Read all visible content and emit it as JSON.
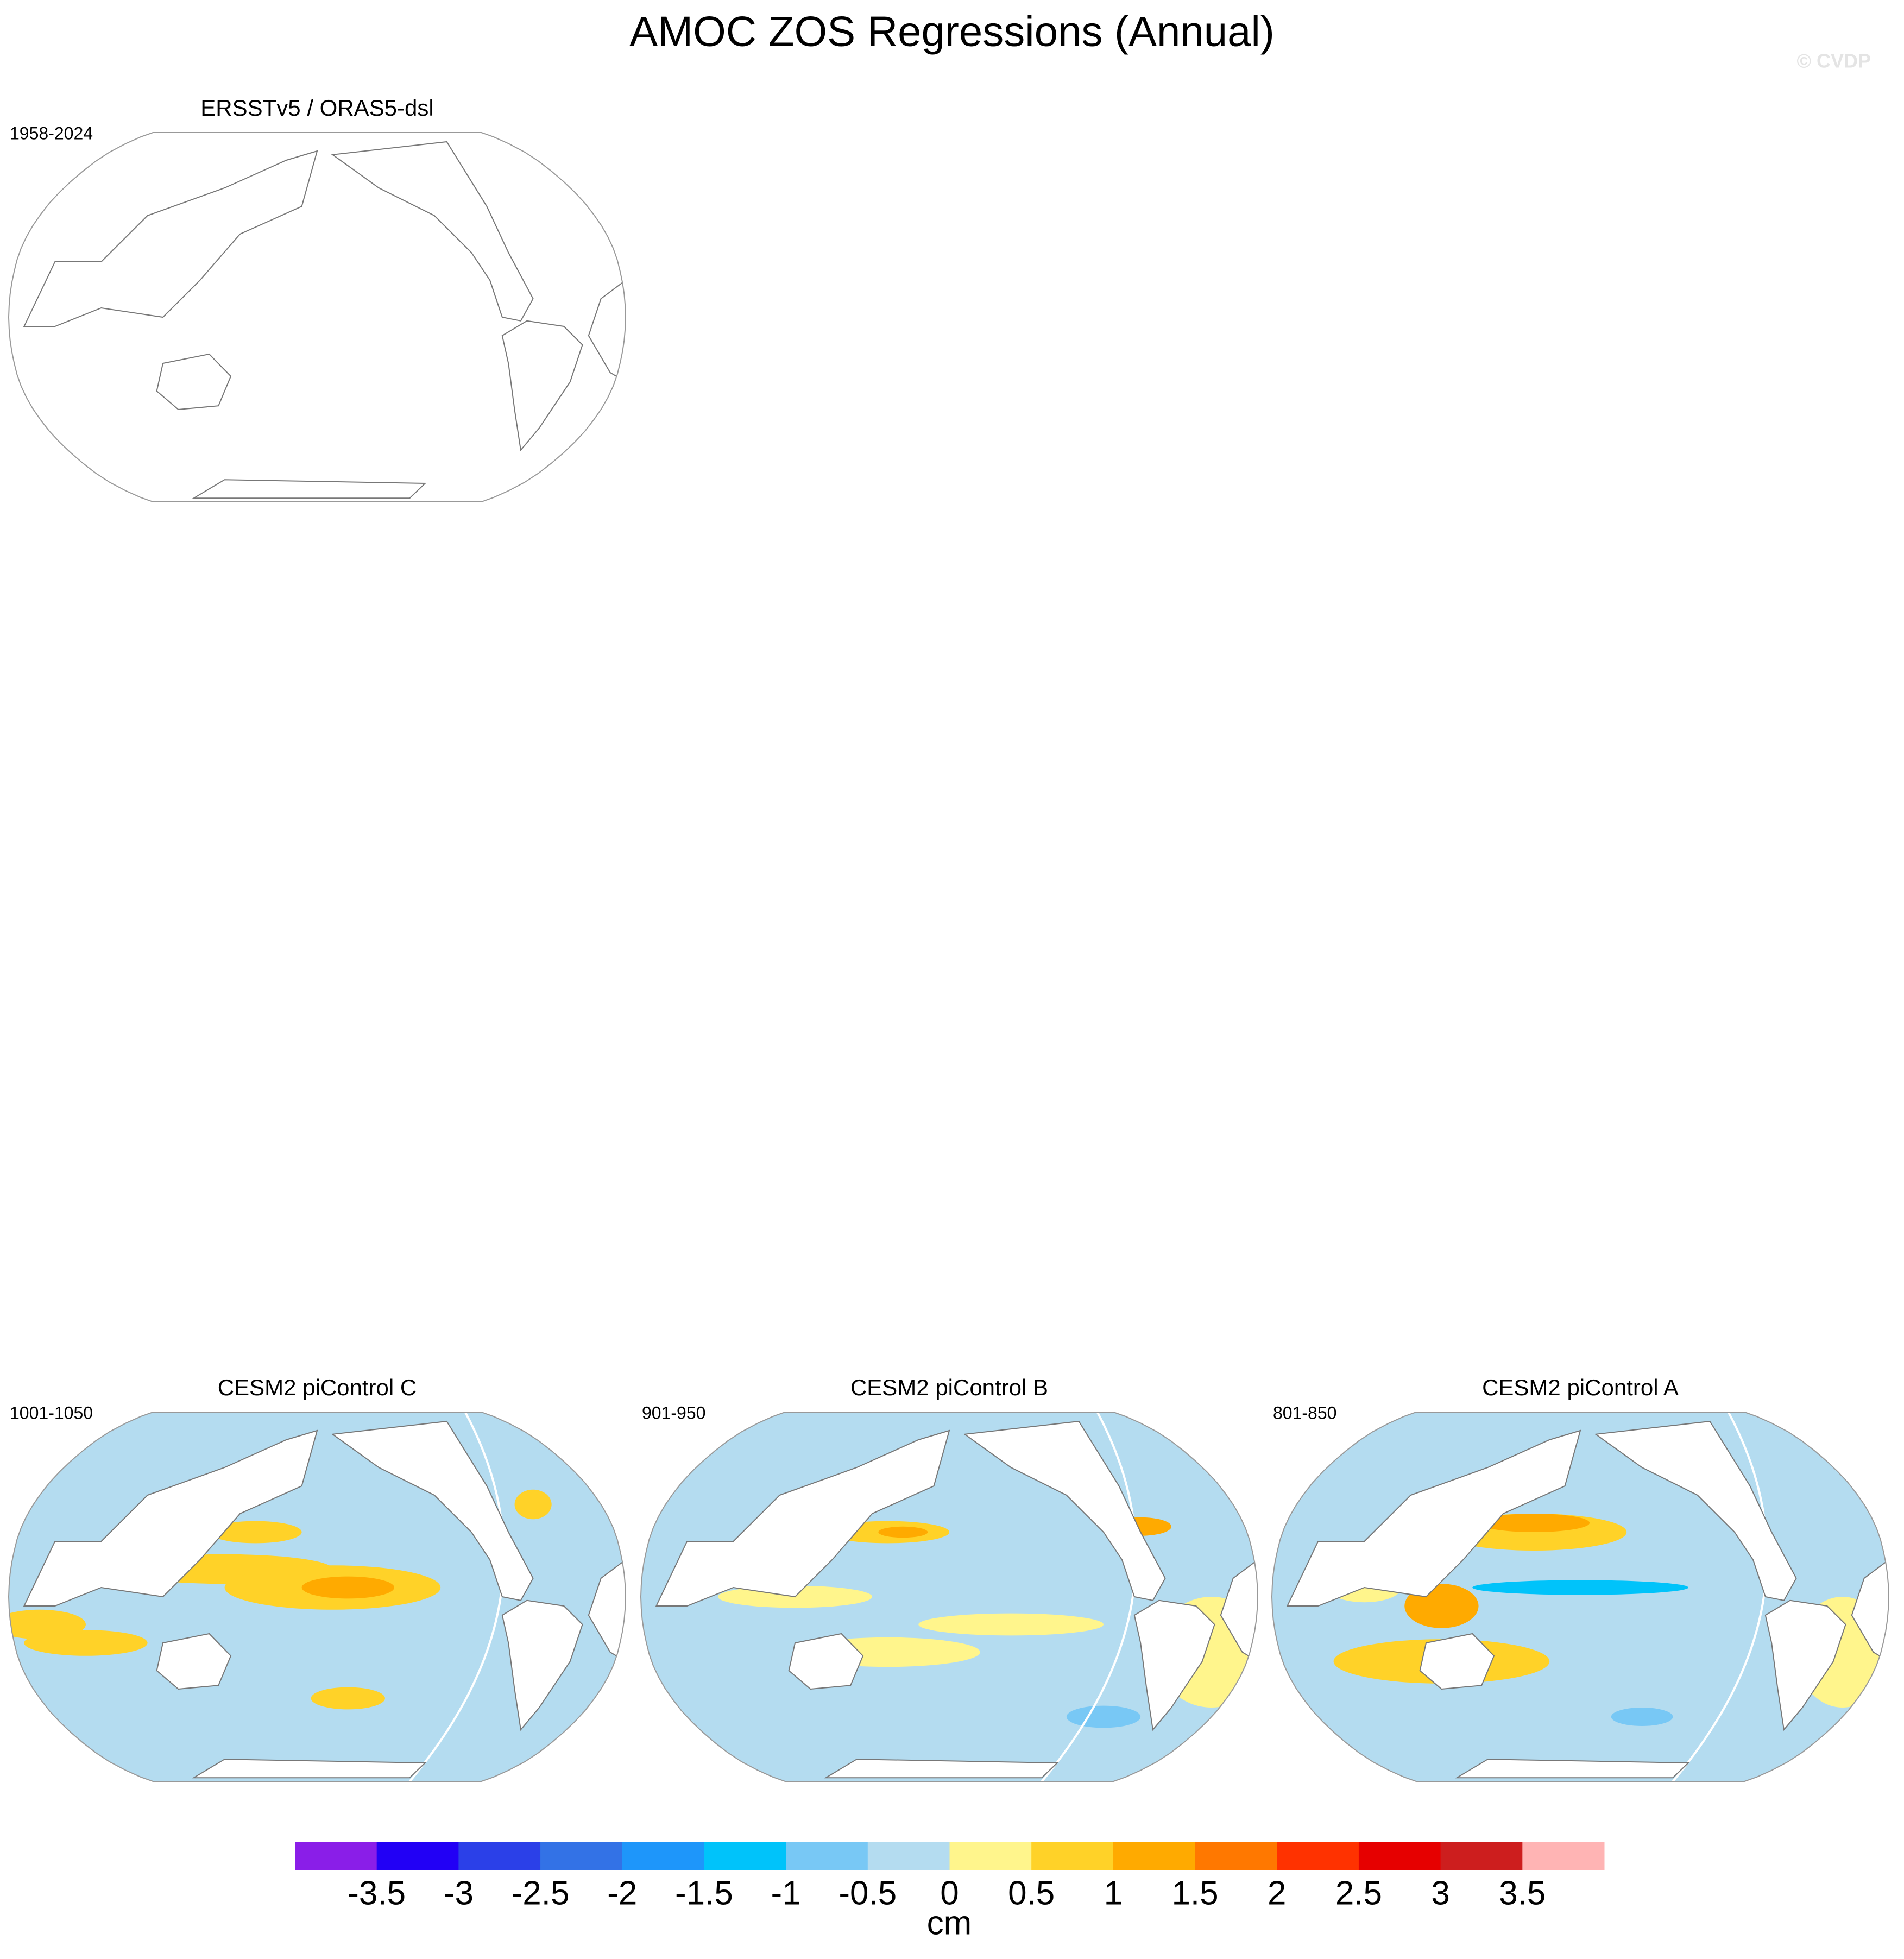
{
  "title": "AMOC ZOS Regressions (Annual)",
  "watermark": "© CVDP",
  "panels": [
    {
      "title": "ERSSTv5 / ORAS5-dsl",
      "period": "1958-2024"
    },
    {
      "title": "CESM2 piControl C",
      "period": "1001-1050"
    },
    {
      "title": "CESM2 piControl B",
      "period": "901-950"
    },
    {
      "title": "CESM2 piControl A",
      "period": "801-850"
    }
  ],
  "colorbar": {
    "ticks": [
      -3.5,
      -3,
      -2.5,
      -2,
      -1.5,
      -1,
      -0.5,
      0,
      0.5,
      1,
      1.5,
      2,
      2.5,
      3,
      3.5
    ],
    "colors": [
      "#8a1ee8",
      "#2200f5",
      "#2b40e8",
      "#3372e6",
      "#1e96fa",
      "#00c3fa",
      "#78c8f5",
      "#b4dcf0",
      "#fff58c",
      "#ffd228",
      "#ffaa00",
      "#ff7800",
      "#ff3200",
      "#e60000",
      "#cd1e1e",
      "#ffb4b4"
    ],
    "unit": "cm"
  }
}
